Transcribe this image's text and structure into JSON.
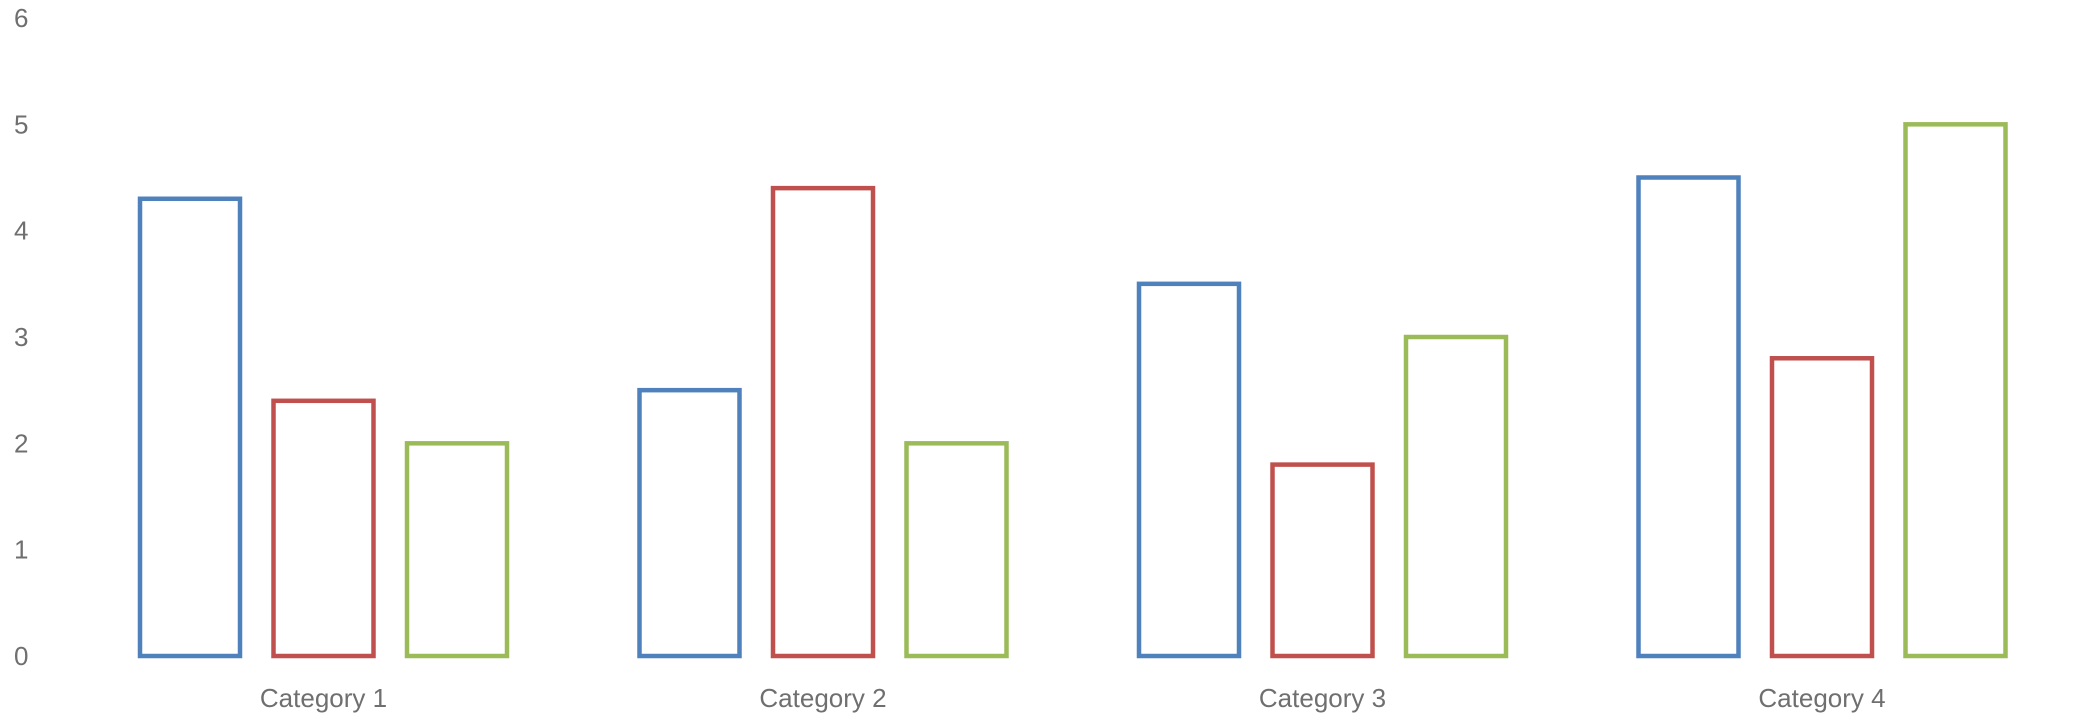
{
  "chart_data": {
    "type": "bar",
    "categories": [
      "Category 1",
      "Category 2",
      "Category 3",
      "Category 4"
    ],
    "series": [
      {
        "values": [
          4.3,
          2.5,
          3.5,
          4.5
        ],
        "color": "#4f81bd"
      },
      {
        "values": [
          2.4,
          4.4,
          1.8,
          2.8
        ],
        "color": "#c0504d"
      },
      {
        "values": [
          2.0,
          2.0,
          3.0,
          5.0
        ],
        "color": "#9bbb59"
      }
    ],
    "y_ticks": [
      "0",
      "1",
      "2",
      "3",
      "4",
      "5",
      "6"
    ],
    "ylim": [
      0,
      6
    ],
    "grid": false,
    "bar_style": "outline",
    "title": "",
    "xlabel": "",
    "ylabel": ""
  }
}
